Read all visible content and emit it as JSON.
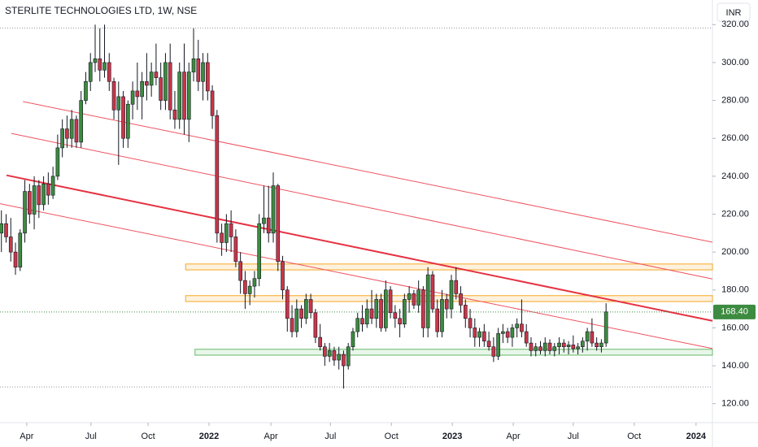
{
  "chart_data": {
    "type": "candlestick",
    "title": "STERLITE TECHNOLOGIES LTD, 1W, NSE",
    "currency": "INR",
    "up_color": "#3d8b40",
    "down_color": "#c9364a",
    "xlim": [
      -0.3,
      151.7
    ],
    "ylim": [
      110,
      333
    ],
    "yticks": [
      {
        "value": 120,
        "label": "120.00"
      },
      {
        "value": 140,
        "label": "140.00"
      },
      {
        "value": 160,
        "label": "160.00"
      },
      {
        "value": 180,
        "label": "180.00"
      },
      {
        "value": 200,
        "label": "200.00"
      },
      {
        "value": 220,
        "label": "220.00"
      },
      {
        "value": 240,
        "label": "240.00"
      },
      {
        "value": 260,
        "label": "260.00"
      },
      {
        "value": 280,
        "label": "280.00"
      },
      {
        "value": 300,
        "label": "300.00"
      },
      {
        "value": 320,
        "label": "320.00"
      }
    ],
    "xticks": [
      {
        "value": 5.4,
        "label": "Apr"
      },
      {
        "value": 19.1,
        "label": "Jul"
      },
      {
        "value": 31.3,
        "label": "Oct"
      },
      {
        "value": 44.3,
        "label": "2022"
      },
      {
        "value": 57.5,
        "label": "Apr"
      },
      {
        "value": 70.2,
        "label": "Jul"
      },
      {
        "value": 83.2,
        "label": "Oct"
      },
      {
        "value": 96.2,
        "label": "2023"
      },
      {
        "value": 109.2,
        "label": "Apr"
      },
      {
        "value": 122.0,
        "label": "Jul"
      },
      {
        "value": 135.0,
        "label": "Oct"
      },
      {
        "value": 148.2,
        "label": "2024"
      }
    ],
    "last_price": {
      "value": 168.4,
      "label": "168.40"
    },
    "candles": [
      [
        210,
        222,
        200,
        215
      ],
      [
        215,
        220,
        205,
        208
      ],
      [
        208,
        218,
        195,
        200
      ],
      [
        200,
        205,
        188,
        192
      ],
      [
        192,
        212,
        190,
        210
      ],
      [
        210,
        238,
        205,
        232
      ],
      [
        232,
        236,
        215,
        220
      ],
      [
        220,
        240,
        212,
        235
      ],
      [
        235,
        238,
        218,
        225
      ],
      [
        225,
        240,
        222,
        236
      ],
      [
        236,
        242,
        225,
        230
      ],
      [
        230,
        245,
        228,
        240
      ],
      [
        240,
        262,
        238,
        255
      ],
      [
        255,
        270,
        250,
        265
      ],
      [
        265,
        272,
        255,
        260
      ],
      [
        260,
        275,
        255,
        270
      ],
      [
        270,
        272,
        255,
        258
      ],
      [
        258,
        285,
        255,
        280
      ],
      [
        280,
        295,
        278,
        290
      ],
      [
        290,
        305,
        285,
        300
      ],
      [
        300,
        320,
        295,
        302
      ],
      [
        302,
        318,
        290,
        296
      ],
      [
        296,
        320,
        292,
        300
      ],
      [
        300,
        305,
        285,
        290
      ],
      [
        290,
        292,
        270,
        275
      ],
      [
        275,
        290,
        246,
        282
      ],
      [
        282,
        285,
        255,
        260
      ],
      [
        260,
        280,
        255,
        278
      ],
      [
        278,
        290,
        270,
        285
      ],
      [
        285,
        300,
        275,
        282
      ],
      [
        282,
        295,
        270,
        290
      ],
      [
        290,
        305,
        280,
        288
      ],
      [
        288,
        300,
        282,
        295
      ],
      [
        295,
        310,
        288,
        292
      ],
      [
        292,
        300,
        275,
        280
      ],
      [
        280,
        305,
        275,
        300
      ],
      [
        300,
        310,
        270,
        275
      ],
      [
        275,
        285,
        265,
        270
      ],
      [
        270,
        300,
        265,
        295
      ],
      [
        295,
        310,
        262,
        270
      ],
      [
        270,
        300,
        258,
        295
      ],
      [
        295,
        318,
        290,
        302
      ],
      [
        302,
        312,
        285,
        290
      ],
      [
        290,
        305,
        280,
        300
      ],
      [
        300,
        305,
        280,
        285
      ],
      [
        285,
        288,
        265,
        272
      ],
      [
        272,
        275,
        205,
        210
      ],
      [
        210,
        215,
        198,
        205
      ],
      [
        205,
        220,
        200,
        215
      ],
      [
        215,
        222,
        200,
        208
      ],
      [
        208,
        212,
        192,
        195
      ],
      [
        195,
        200,
        178,
        185
      ],
      [
        185,
        190,
        170,
        178
      ],
      [
        178,
        185,
        172,
        182
      ],
      [
        182,
        190,
        176,
        186
      ],
      [
        186,
        220,
        182,
        215
      ],
      [
        215,
        235,
        210,
        218
      ],
      [
        218,
        235,
        205,
        210
      ],
      [
        210,
        242,
        205,
        235
      ],
      [
        235,
        236,
        190,
        195
      ],
      [
        195,
        198,
        175,
        180
      ],
      [
        180,
        182,
        158,
        165
      ],
      [
        165,
        172,
        155,
        158
      ],
      [
        158,
        175,
        155,
        170
      ],
      [
        170,
        172,
        160,
        165
      ],
      [
        165,
        178,
        162,
        175
      ],
      [
        175,
        178,
        165,
        168
      ],
      [
        168,
        170,
        152,
        155
      ],
      [
        155,
        162,
        148,
        150
      ],
      [
        150,
        152,
        140,
        145
      ],
      [
        145,
        152,
        142,
        148
      ],
      [
        148,
        150,
        140,
        143
      ],
      [
        143,
        150,
        138,
        146
      ],
      [
        146,
        148,
        128,
        140
      ],
      [
        140,
        152,
        138,
        150
      ],
      [
        150,
        160,
        148,
        158
      ],
      [
        158,
        168,
        155,
        165
      ],
      [
        165,
        172,
        158,
        162
      ],
      [
        162,
        175,
        160,
        170
      ],
      [
        170,
        180,
        162,
        165
      ],
      [
        165,
        178,
        160,
        175
      ],
      [
        175,
        178,
        158,
        160
      ],
      [
        160,
        185,
        158,
        180
      ],
      [
        180,
        182,
        165,
        168
      ],
      [
        168,
        172,
        160,
        165
      ],
      [
        165,
        170,
        155,
        162
      ],
      [
        162,
        178,
        160,
        175
      ],
      [
        175,
        182,
        168,
        178
      ],
      [
        178,
        180,
        170,
        172
      ],
      [
        172,
        185,
        168,
        180
      ],
      [
        180,
        182,
        155,
        160
      ],
      [
        160,
        192,
        155,
        188
      ],
      [
        188,
        190,
        168,
        170
      ],
      [
        170,
        175,
        155,
        158
      ],
      [
        158,
        180,
        155,
        175
      ],
      [
        175,
        178,
        165,
        170
      ],
      [
        170,
        188,
        165,
        185
      ],
      [
        185,
        192,
        175,
        178
      ],
      [
        178,
        182,
        168,
        172
      ],
      [
        172,
        175,
        160,
        165
      ],
      [
        165,
        170,
        155,
        160
      ],
      [
        160,
        165,
        150,
        155
      ],
      [
        155,
        160,
        150,
        158
      ],
      [
        158,
        162,
        150,
        153
      ],
      [
        153,
        158,
        148,
        150
      ],
      [
        150,
        155,
        142,
        145
      ],
      [
        145,
        160,
        143,
        157
      ],
      [
        157,
        162,
        152,
        158
      ],
      [
        158,
        160,
        152,
        155
      ],
      [
        155,
        162,
        150,
        160
      ],
      [
        160,
        165,
        155,
        162
      ],
      [
        162,
        175,
        155,
        158
      ],
      [
        158,
        162,
        150,
        152
      ],
      [
        152,
        155,
        145,
        148
      ],
      [
        148,
        152,
        145,
        150
      ],
      [
        150,
        153,
        146,
        148
      ],
      [
        148,
        155,
        145,
        152
      ],
      [
        152,
        154,
        146,
        148
      ],
      [
        148,
        152,
        145,
        150
      ],
      [
        150,
        155,
        146,
        152
      ],
      [
        152,
        154,
        147,
        150
      ],
      [
        150,
        153,
        146,
        151
      ],
      [
        151,
        156,
        147,
        149
      ],
      [
        149,
        152,
        146,
        150
      ],
      [
        150,
        155,
        147,
        153
      ],
      [
        153,
        160,
        148,
        158
      ],
      [
        158,
        165,
        150,
        152
      ],
      [
        152,
        155,
        148,
        150
      ],
      [
        150,
        154,
        147,
        152
      ],
      [
        152,
        173,
        150,
        168.4
      ]
    ],
    "trend_lines": [
      {
        "from": [
          1.1,
          240.5
        ],
        "to": [
          151.7,
          163.7
        ],
        "width": 2,
        "color": "#e53242"
      },
      {
        "from": [
          4.6,
          279.4
        ],
        "to": [
          151.7,
          205.2
        ],
        "width": 1,
        "color": "#ef5360"
      },
      {
        "from": [
          2.1,
          262.6
        ],
        "to": [
          151.7,
          185.8
        ],
        "width": 1,
        "color": "#ef5360"
      },
      {
        "from": [
          -0.3,
          225.5
        ],
        "to": [
          151.7,
          149.1
        ],
        "width": 1,
        "color": "#ef5360"
      }
    ],
    "zones": [
      {
        "from": 39.3,
        "top": 193.7,
        "bottom": 190.6,
        "color": "#f5a623"
      },
      {
        "from": 39.3,
        "top": 177.0,
        "bottom": 173.9,
        "color": "#f5a623"
      },
      {
        "from": 41.3,
        "top": 148.7,
        "bottom": 145.6,
        "color": "#66bb6a"
      }
    ],
    "dotted_levels": [
      318.2,
      128.8
    ]
  }
}
